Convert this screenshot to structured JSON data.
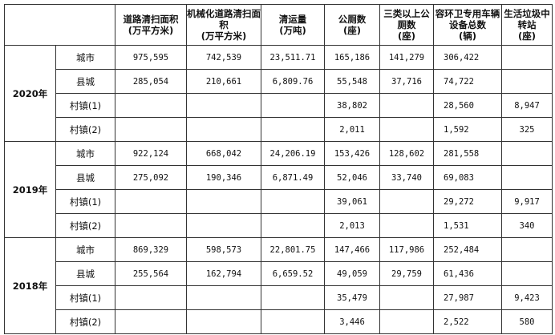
{
  "headers": [
    "",
    "",
    "道路清扫面积\n(万平方米)",
    "机械化道路清扫面积\n(万平方米)",
    "清运量\n(万吨)",
    "公厕数\n(座)",
    "三类以上公厕数\n(座)",
    "容环卫专用车辆设备总数\n(辆)",
    "生活垃圾中转站\n(座)"
  ],
  "groups": [
    {
      "year": "2020年",
      "rows": [
        [
          "城市",
          "975,595",
          "742,539",
          "23,511.71",
          "165,186",
          "141,279",
          "306,422",
          ""
        ],
        [
          "县城",
          "285,054",
          "210,661",
          "6,809.76",
          "55,548",
          "37,716",
          "74,722",
          ""
        ],
        [
          "村镇(1)",
          "",
          "",
          "",
          "38,802",
          "",
          "28,560",
          "8,947"
        ],
        [
          "村镇(2)",
          "",
          "",
          "",
          "2,011",
          "",
          "1,592",
          "325"
        ]
      ]
    },
    {
      "year": "2019年",
      "rows": [
        [
          "城市",
          "922,124",
          "668,042",
          "24,206.19",
          "153,426",
          "128,602",
          "281,558",
          ""
        ],
        [
          "县城",
          "275,092",
          "190,346",
          "6,871.49",
          "52,046",
          "33,740",
          "69,083",
          ""
        ],
        [
          "村镇(1)",
          "",
          "",
          "",
          "39,061",
          "",
          "29,272",
          "9,917"
        ],
        [
          "村镇(2)",
          "",
          "",
          "",
          "2,013",
          "",
          "1,531",
          "340"
        ]
      ]
    },
    {
      "year": "2018年",
      "rows": [
        [
          "城市",
          "869,329",
          "598,573",
          "22,801.75",
          "147,466",
          "117,986",
          "252,484",
          ""
        ],
        [
          "县城",
          "255,564",
          "162,794",
          "6,659.52",
          "49,059",
          "29,759",
          "61,436",
          ""
        ],
        [
          "村镇(1)",
          "",
          "",
          "",
          "35,479",
          "",
          "27,987",
          "9,423"
        ],
        [
          "村镇(2)",
          "",
          "",
          "",
          "3,446",
          "",
          "2,522",
          "580"
        ]
      ]
    }
  ]
}
